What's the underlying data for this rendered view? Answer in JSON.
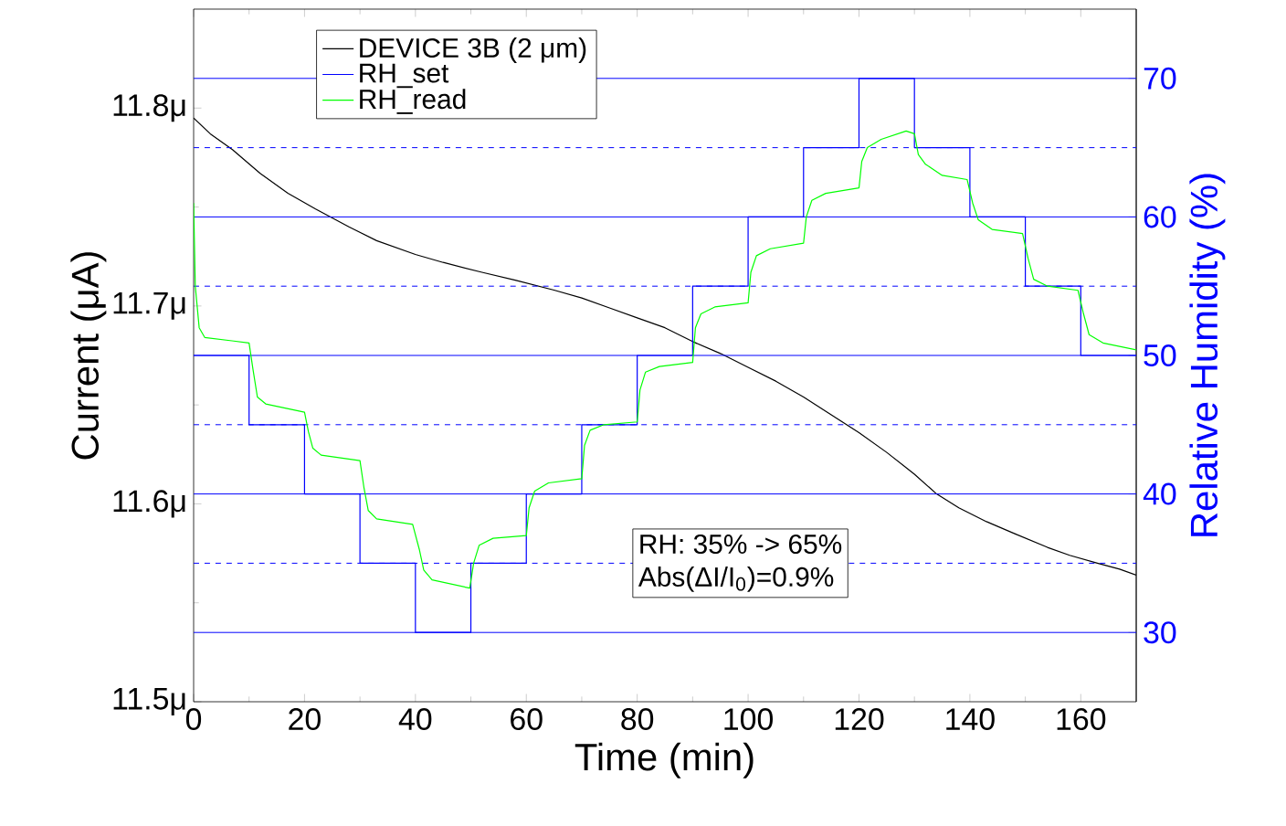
{
  "chart_data": {
    "type": "line",
    "xlabel": "Time (min)",
    "ylabel": "Current (μA)",
    "y2label": "Relative Humidity (%)",
    "xlim": [
      0,
      170
    ],
    "xticks": [
      0,
      20,
      40,
      60,
      80,
      100,
      120,
      140,
      160
    ],
    "ylim": [
      11.5,
      11.85
    ],
    "yticks": [
      {
        "value": 11.5,
        "label": "11.5μ"
      },
      {
        "value": 11.6,
        "label": "11.6μ"
      },
      {
        "value": 11.7,
        "label": "11.7μ"
      },
      {
        "value": 11.8,
        "label": "11.8μ"
      }
    ],
    "y2lim": [
      25,
      75
    ],
    "y2ticks": [
      30,
      40,
      50,
      60,
      70
    ],
    "legend": "top left",
    "marker": "none",
    "series": [
      {
        "name": "DEVICE 3B (2 μm)",
        "color": "#000000",
        "x": [
          0,
          3,
          7,
          12,
          17,
          22,
          28,
          33,
          40,
          45,
          52,
          58,
          65,
          70,
          75,
          80,
          85,
          90,
          95,
          100,
          105,
          110,
          115,
          120,
          125,
          130,
          134,
          138,
          143,
          148,
          154,
          158,
          163,
          167,
          170
        ],
        "values": [
          11.795,
          11.787,
          11.779,
          11.767,
          11.757,
          11.749,
          11.74,
          11.733,
          11.726,
          11.722,
          11.717,
          11.713,
          11.708,
          11.704,
          11.699,
          11.694,
          11.689,
          11.682,
          11.676,
          11.669,
          11.662,
          11.654,
          11.645,
          11.636,
          11.626,
          11.615,
          11.605,
          11.598,
          11.591,
          11.585,
          11.578,
          11.574,
          11.57,
          11.567,
          11.564
        ]
      },
      {
        "name": "RH_set",
        "color": "#0000ff",
        "type": "step",
        "axis": "y2",
        "x": [
          0,
          10,
          20,
          30,
          40,
          50,
          60,
          70,
          80,
          90,
          100,
          110,
          120,
          130,
          140,
          150,
          160,
          170
        ],
        "values": [
          50,
          45,
          40,
          35,
          30,
          35,
          40,
          45,
          50,
          55,
          60,
          65,
          70,
          65,
          60,
          55,
          50,
          50
        ]
      },
      {
        "name": "RH_read",
        "color": "#00ff00",
        "axis": "y2",
        "x": [
          0,
          0.3,
          1,
          2,
          10,
          10.7,
          11.5,
          13,
          20,
          20.7,
          21.5,
          23,
          30,
          30.7,
          31.5,
          33,
          39.5,
          40.7,
          41.5,
          43,
          49.8,
          50.5,
          51.5,
          54,
          60,
          60.5,
          61.5,
          64,
          70,
          70.5,
          71.5,
          74,
          80,
          80.5,
          81.5,
          84,
          90,
          90.5,
          91.5,
          94,
          100,
          100.5,
          101.5,
          104,
          110,
          110.5,
          111.5,
          114,
          120,
          120.5,
          121.5,
          124,
          128.5,
          130,
          130.7,
          132,
          135,
          139.5,
          140.5,
          141.5,
          144,
          149.5,
          150.5,
          151.5,
          154,
          159.5,
          160.5,
          161.5,
          164,
          170
        ],
        "values": [
          61,
          55,
          52,
          51.3,
          50.9,
          49,
          47,
          46.5,
          45.9,
          44.5,
          43.3,
          42.8,
          42.4,
          40.5,
          38.8,
          38.2,
          37.8,
          36,
          34.5,
          33.8,
          33.2,
          35,
          36.3,
          36.8,
          37,
          39,
          40.2,
          40.8,
          41.1,
          43.5,
          44.6,
          45,
          45.2,
          47.5,
          48.8,
          49.2,
          49.5,
          52,
          53,
          53.5,
          53.8,
          56,
          57.2,
          57.7,
          58.1,
          60,
          61.2,
          61.7,
          62.1,
          64,
          65,
          65.6,
          66.2,
          66,
          64.5,
          63.8,
          63,
          62.7,
          61,
          59.8,
          59.1,
          58.8,
          57,
          55.5,
          55,
          54.7,
          53,
          51.5,
          50.9,
          50.4
        ]
      }
    ],
    "ref_lines": [
      {
        "axis": "y2",
        "value": 30,
        "color": "#0000ff",
        "line_style": "solid"
      },
      {
        "axis": "y2",
        "value": 35,
        "color": "#0000ff",
        "line_style": "dashed"
      },
      {
        "axis": "y2",
        "value": 40,
        "color": "#0000ff",
        "line_style": "solid"
      },
      {
        "axis": "y2",
        "value": 45,
        "color": "#0000ff",
        "line_style": "dashed"
      },
      {
        "axis": "y2",
        "value": 50,
        "color": "#0000ff",
        "line_style": "solid"
      },
      {
        "axis": "y2",
        "value": 55,
        "color": "#0000ff",
        "line_style": "dashed"
      },
      {
        "axis": "y2",
        "value": 60,
        "color": "#0000ff",
        "line_style": "solid"
      },
      {
        "axis": "y2",
        "value": 65,
        "color": "#0000ff",
        "line_style": "dashed"
      },
      {
        "axis": "y2",
        "value": 70,
        "color": "#0000ff",
        "line_style": "solid"
      }
    ],
    "annotations": [
      "RH: 35% -> 65%",
      "Abs(ΔI/I$_{0}$)=0.9%"
    ]
  }
}
